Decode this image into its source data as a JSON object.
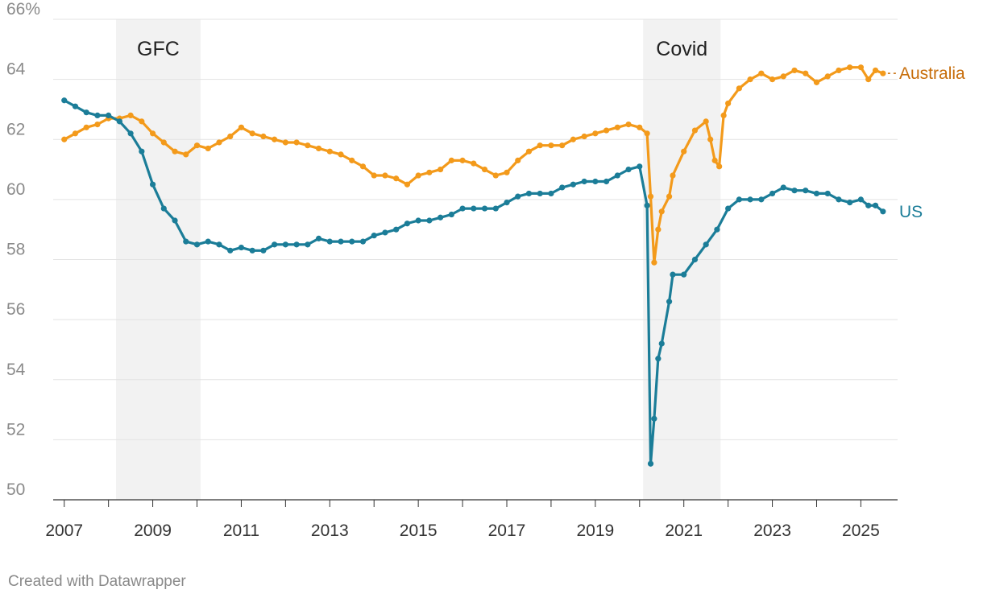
{
  "credit": "Created with Datawrapper",
  "chart_data": {
    "type": "line",
    "title": "",
    "xlabel": "",
    "ylabel": "",
    "y_unit": "%",
    "ylim": [
      50,
      66
    ],
    "y_ticks": [
      50,
      52,
      54,
      56,
      58,
      60,
      62,
      64,
      66
    ],
    "y_tick_labels": [
      "50",
      "52",
      "54",
      "56",
      "58",
      "60",
      "62",
      "64",
      "66%"
    ],
    "xlim": [
      2006.75,
      2025.83
    ],
    "x_ticks": [
      2007,
      2008,
      2009,
      2010,
      2011,
      2012,
      2013,
      2014,
      2015,
      2016,
      2017,
      2018,
      2019,
      2020,
      2021,
      2022,
      2023,
      2024,
      2025
    ],
    "x_tick_labels": [
      "2007",
      "",
      "2009",
      "",
      "2011",
      "",
      "2013",
      "",
      "2015",
      "",
      "2017",
      "",
      "2019",
      "",
      "2021",
      "",
      "2023",
      "",
      "2025"
    ],
    "grid": true,
    "bands": [
      {
        "label": "GFC",
        "start": 2008.17,
        "end": 2010.08,
        "color": "#f2f2f2"
      },
      {
        "label": "Covid",
        "start": 2020.08,
        "end": 2021.83,
        "color": "#f2f2f2"
      }
    ],
    "series": [
      {
        "name": "Australia",
        "color": "#f39a1b",
        "label_color": "#c76d0a",
        "points": [
          [
            2007.0,
            62.0
          ],
          [
            2007.25,
            62.2
          ],
          [
            2007.5,
            62.4
          ],
          [
            2007.75,
            62.5
          ],
          [
            2008.0,
            62.7
          ],
          [
            2008.25,
            62.7
          ],
          [
            2008.5,
            62.8
          ],
          [
            2008.75,
            62.6
          ],
          [
            2009.0,
            62.2
          ],
          [
            2009.25,
            61.9
          ],
          [
            2009.5,
            61.6
          ],
          [
            2009.75,
            61.5
          ],
          [
            2010.0,
            61.8
          ],
          [
            2010.25,
            61.7
          ],
          [
            2010.5,
            61.9
          ],
          [
            2010.75,
            62.1
          ],
          [
            2011.0,
            62.4
          ],
          [
            2011.25,
            62.2
          ],
          [
            2011.5,
            62.1
          ],
          [
            2011.75,
            62.0
          ],
          [
            2012.0,
            61.9
          ],
          [
            2012.25,
            61.9
          ],
          [
            2012.5,
            61.8
          ],
          [
            2012.75,
            61.7
          ],
          [
            2013.0,
            61.6
          ],
          [
            2013.25,
            61.5
          ],
          [
            2013.5,
            61.3
          ],
          [
            2013.75,
            61.1
          ],
          [
            2014.0,
            60.8
          ],
          [
            2014.25,
            60.8
          ],
          [
            2014.5,
            60.7
          ],
          [
            2014.75,
            60.5
          ],
          [
            2015.0,
            60.8
          ],
          [
            2015.25,
            60.9
          ],
          [
            2015.5,
            61.0
          ],
          [
            2015.75,
            61.3
          ],
          [
            2016.0,
            61.3
          ],
          [
            2016.25,
            61.2
          ],
          [
            2016.5,
            61.0
          ],
          [
            2016.75,
            60.8
          ],
          [
            2017.0,
            60.9
          ],
          [
            2017.25,
            61.3
          ],
          [
            2017.5,
            61.6
          ],
          [
            2017.75,
            61.8
          ],
          [
            2018.0,
            61.8
          ],
          [
            2018.25,
            61.8
          ],
          [
            2018.5,
            62.0
          ],
          [
            2018.75,
            62.1
          ],
          [
            2019.0,
            62.2
          ],
          [
            2019.25,
            62.3
          ],
          [
            2019.5,
            62.4
          ],
          [
            2019.75,
            62.5
          ],
          [
            2020.0,
            62.4
          ],
          [
            2020.17,
            62.2
          ],
          [
            2020.25,
            60.1
          ],
          [
            2020.33,
            57.9
          ],
          [
            2020.42,
            59.0
          ],
          [
            2020.5,
            59.6
          ],
          [
            2020.67,
            60.1
          ],
          [
            2020.75,
            60.8
          ],
          [
            2021.0,
            61.6
          ],
          [
            2021.25,
            62.3
          ],
          [
            2021.5,
            62.6
          ],
          [
            2021.6,
            62.0
          ],
          [
            2021.7,
            61.3
          ],
          [
            2021.8,
            61.1
          ],
          [
            2021.9,
            62.8
          ],
          [
            2022.0,
            63.2
          ],
          [
            2022.25,
            63.7
          ],
          [
            2022.5,
            64.0
          ],
          [
            2022.75,
            64.2
          ],
          [
            2023.0,
            64.0
          ],
          [
            2023.25,
            64.1
          ],
          [
            2023.5,
            64.3
          ],
          [
            2023.75,
            64.2
          ],
          [
            2024.0,
            63.9
          ],
          [
            2024.25,
            64.1
          ],
          [
            2024.5,
            64.3
          ],
          [
            2024.75,
            64.4
          ],
          [
            2025.0,
            64.4
          ],
          [
            2025.17,
            64.0
          ],
          [
            2025.33,
            64.3
          ],
          [
            2025.5,
            64.2
          ]
        ]
      },
      {
        "name": "US",
        "color": "#1b7d98",
        "label_color": "#1b7d98",
        "points": [
          [
            2007.0,
            63.3
          ],
          [
            2007.25,
            63.1
          ],
          [
            2007.5,
            62.9
          ],
          [
            2007.75,
            62.8
          ],
          [
            2008.0,
            62.8
          ],
          [
            2008.25,
            62.6
          ],
          [
            2008.5,
            62.2
          ],
          [
            2008.75,
            61.6
          ],
          [
            2009.0,
            60.5
          ],
          [
            2009.25,
            59.7
          ],
          [
            2009.5,
            59.3
          ],
          [
            2009.75,
            58.6
          ],
          [
            2010.0,
            58.5
          ],
          [
            2010.25,
            58.6
          ],
          [
            2010.5,
            58.5
          ],
          [
            2010.75,
            58.3
          ],
          [
            2011.0,
            58.4
          ],
          [
            2011.25,
            58.3
          ],
          [
            2011.5,
            58.3
          ],
          [
            2011.75,
            58.5
          ],
          [
            2012.0,
            58.5
          ],
          [
            2012.25,
            58.5
          ],
          [
            2012.5,
            58.5
          ],
          [
            2012.75,
            58.7
          ],
          [
            2013.0,
            58.6
          ],
          [
            2013.25,
            58.6
          ],
          [
            2013.5,
            58.6
          ],
          [
            2013.75,
            58.6
          ],
          [
            2014.0,
            58.8
          ],
          [
            2014.25,
            58.9
          ],
          [
            2014.5,
            59.0
          ],
          [
            2014.75,
            59.2
          ],
          [
            2015.0,
            59.3
          ],
          [
            2015.25,
            59.3
          ],
          [
            2015.5,
            59.4
          ],
          [
            2015.75,
            59.5
          ],
          [
            2016.0,
            59.7
          ],
          [
            2016.25,
            59.7
          ],
          [
            2016.5,
            59.7
          ],
          [
            2016.75,
            59.7
          ],
          [
            2017.0,
            59.9
          ],
          [
            2017.25,
            60.1
          ],
          [
            2017.5,
            60.2
          ],
          [
            2017.75,
            60.2
          ],
          [
            2018.0,
            60.2
          ],
          [
            2018.25,
            60.4
          ],
          [
            2018.5,
            60.5
          ],
          [
            2018.75,
            60.6
          ],
          [
            2019.0,
            60.6
          ],
          [
            2019.25,
            60.6
          ],
          [
            2019.5,
            60.8
          ],
          [
            2019.75,
            61.0
          ],
          [
            2020.0,
            61.1
          ],
          [
            2020.17,
            59.8
          ],
          [
            2020.25,
            51.2
          ],
          [
            2020.33,
            52.7
          ],
          [
            2020.42,
            54.7
          ],
          [
            2020.5,
            55.2
          ],
          [
            2020.67,
            56.6
          ],
          [
            2020.75,
            57.5
          ],
          [
            2021.0,
            57.5
          ],
          [
            2021.25,
            58.0
          ],
          [
            2021.5,
            58.5
          ],
          [
            2021.75,
            59.0
          ],
          [
            2022.0,
            59.7
          ],
          [
            2022.25,
            60.0
          ],
          [
            2022.5,
            60.0
          ],
          [
            2022.75,
            60.0
          ],
          [
            2023.0,
            60.2
          ],
          [
            2023.25,
            60.4
          ],
          [
            2023.5,
            60.3
          ],
          [
            2023.75,
            60.3
          ],
          [
            2024.0,
            60.2
          ],
          [
            2024.25,
            60.2
          ],
          [
            2024.5,
            60.0
          ],
          [
            2024.75,
            59.9
          ],
          [
            2025.0,
            60.0
          ],
          [
            2025.17,
            59.8
          ],
          [
            2025.33,
            59.8
          ],
          [
            2025.5,
            59.6
          ]
        ]
      }
    ]
  }
}
